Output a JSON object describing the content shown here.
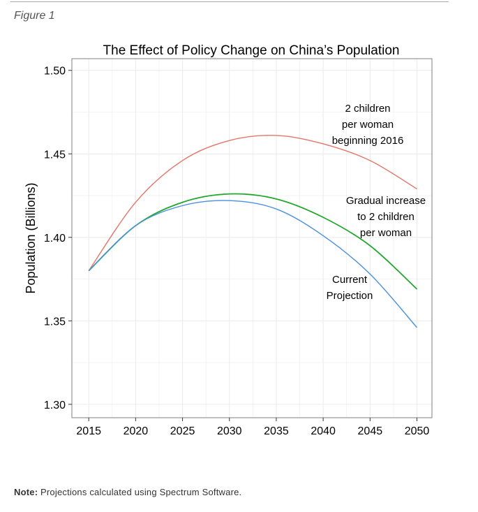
{
  "figure_label": "Figure 1",
  "note": {
    "label": "Note:",
    "text": "Projections calculated using Spectrum Software."
  },
  "colors": {
    "two_children": "#e5756a",
    "gradual": "#22a82e",
    "current": "#4b8fe0",
    "grid": "#ececec",
    "panel_border": "#7f7f7f"
  },
  "chart_data": {
    "type": "line",
    "title": "The Effect of Policy Change on China’s Population",
    "xlabel": "",
    "ylabel": "Population (Billions)",
    "xlim": [
      2013.2,
      2051.6
    ],
    "ylim": [
      1.292,
      1.507
    ],
    "x_ticks": [
      2015,
      2020,
      2025,
      2030,
      2035,
      2040,
      2045,
      2050
    ],
    "x_tick_labels": [
      "2015",
      "2020",
      "2025",
      "2030",
      "2035",
      "2040",
      "2045",
      "2050"
    ],
    "y_ticks": [
      1.3,
      1.35,
      1.4,
      1.45,
      1.5
    ],
    "y_tick_labels": [
      "1.30",
      "1.35",
      "1.40",
      "1.45",
      "1.50"
    ],
    "grid": true,
    "x": [
      2015,
      2020,
      2025,
      2030,
      2035,
      2040,
      2045,
      2050
    ],
    "series": [
      {
        "key": "two_children",
        "values": [
          1.38,
          1.421,
          1.446,
          1.458,
          1.461,
          1.456,
          1.446,
          1.429
        ],
        "annotation": [
          "2 children",
          "per woman",
          "beginning 2016"
        ]
      },
      {
        "key": "gradual",
        "values": [
          1.38,
          1.407,
          1.421,
          1.426,
          1.423,
          1.412,
          1.395,
          1.369
        ],
        "annotation": [
          "Gradual increase",
          "to 2 children",
          "per woman"
        ]
      },
      {
        "key": "current",
        "values": [
          1.38,
          1.407,
          1.419,
          1.422,
          1.417,
          1.401,
          1.378,
          1.346
        ],
        "annotation": [
          "Current",
          "Projection"
        ]
      }
    ]
  }
}
